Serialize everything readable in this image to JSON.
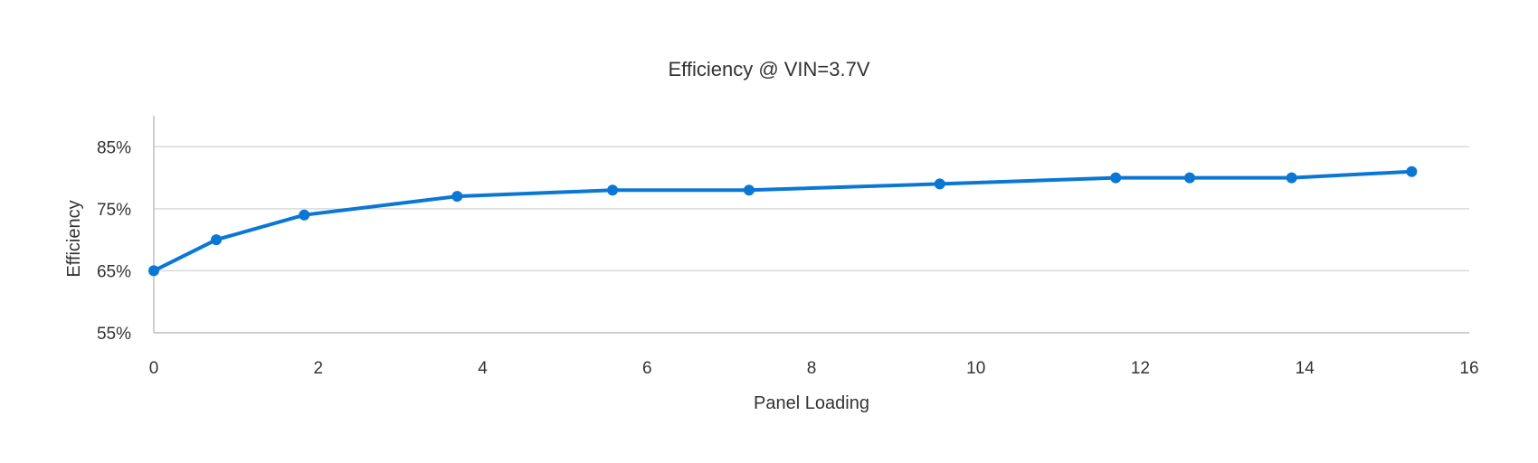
{
  "chart_data": {
    "type": "line",
    "title": "Efficiency @ VIN=3.7V",
    "xlabel": "Panel Loading",
    "ylabel": "Efficiency",
    "xlim": [
      0,
      16
    ],
    "ylim": [
      55,
      90
    ],
    "x_ticks": [
      0,
      2,
      4,
      6,
      8,
      10,
      12,
      14,
      16
    ],
    "x_tick_labels": [
      "0",
      "2",
      "4",
      "6",
      "8",
      "10",
      "12",
      "14",
      "16"
    ],
    "y_ticks": [
      55,
      65,
      75,
      85
    ],
    "y_tick_labels": [
      "55%",
      "65%",
      "75%",
      "85%"
    ],
    "grid": true,
    "legend": "none",
    "series": [
      {
        "color": "#0A77D5",
        "points": [
          {
            "x": 0,
            "y": 65
          },
          {
            "x": 0.76,
            "y": 70
          },
          {
            "x": 1.83,
            "y": 74
          },
          {
            "x": 3.69,
            "y": 77
          },
          {
            "x": 5.58,
            "y": 78
          },
          {
            "x": 7.24,
            "y": 78
          },
          {
            "x": 9.56,
            "y": 79
          },
          {
            "x": 11.7,
            "y": 80
          },
          {
            "x": 12.6,
            "y": 80
          },
          {
            "x": 13.84,
            "y": 80
          },
          {
            "x": 15.3,
            "y": 81
          }
        ]
      }
    ]
  }
}
